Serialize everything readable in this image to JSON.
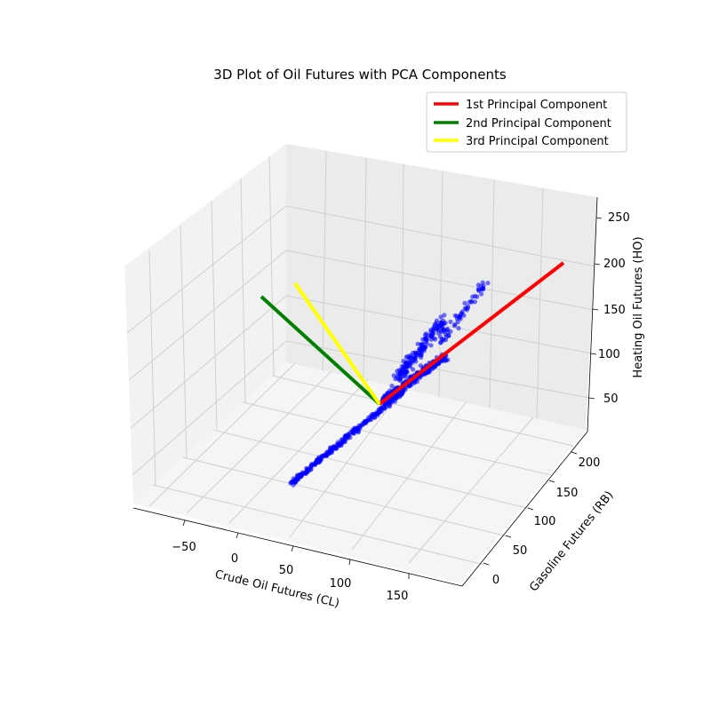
{
  "chart_data": {
    "type": "scatter",
    "projection": "3d",
    "title": "3D Plot of Oil Futures with PCA Components",
    "xlabel": "Crude Oil Futures (CL)",
    "ylabel": "Gasoline Futures (RB)",
    "zlabel": "Heating Oil Futures (HO)",
    "x_ticks": [
      "−50",
      "0",
      "50",
      "100",
      "150"
    ],
    "y_ticks": [
      "0",
      "50",
      "100",
      "150",
      "200"
    ],
    "z_ticks": [
      "50",
      "100",
      "150",
      "200",
      "250"
    ],
    "grid": true,
    "legend_position": "top-right",
    "legend": [
      {
        "label": "1st Principal Component",
        "color": "#ff0000"
      },
      {
        "label": "2nd Principal Component",
        "color": "#008000"
      },
      {
        "label": "3rd Principal Component",
        "color": "#ffff00"
      }
    ],
    "scatter_color": "#0000ff",
    "scatter_description": "blue points of CL / RB / HO daily futures prices, clustered along the 1st principal component"
  }
}
